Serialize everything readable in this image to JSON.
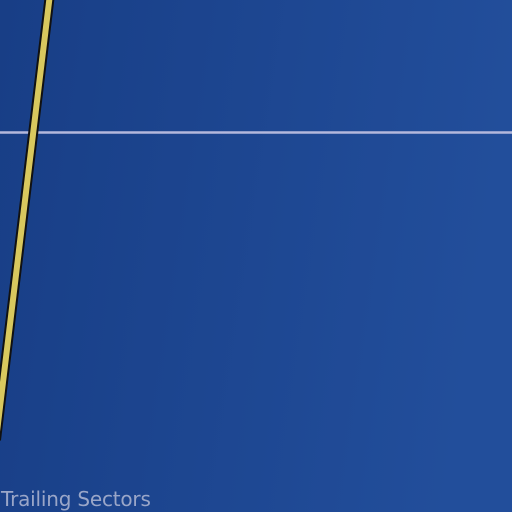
{
  "map": {
    "area_label": "Trailing Sectors",
    "colors": {
      "water_dark": "#183e86",
      "water_light": "#224e9b",
      "road_fill": "#d8c85e",
      "road_casing": "#111111",
      "boundary_line": "#b4b8dc",
      "label_text": "#9aa6c8"
    }
  }
}
